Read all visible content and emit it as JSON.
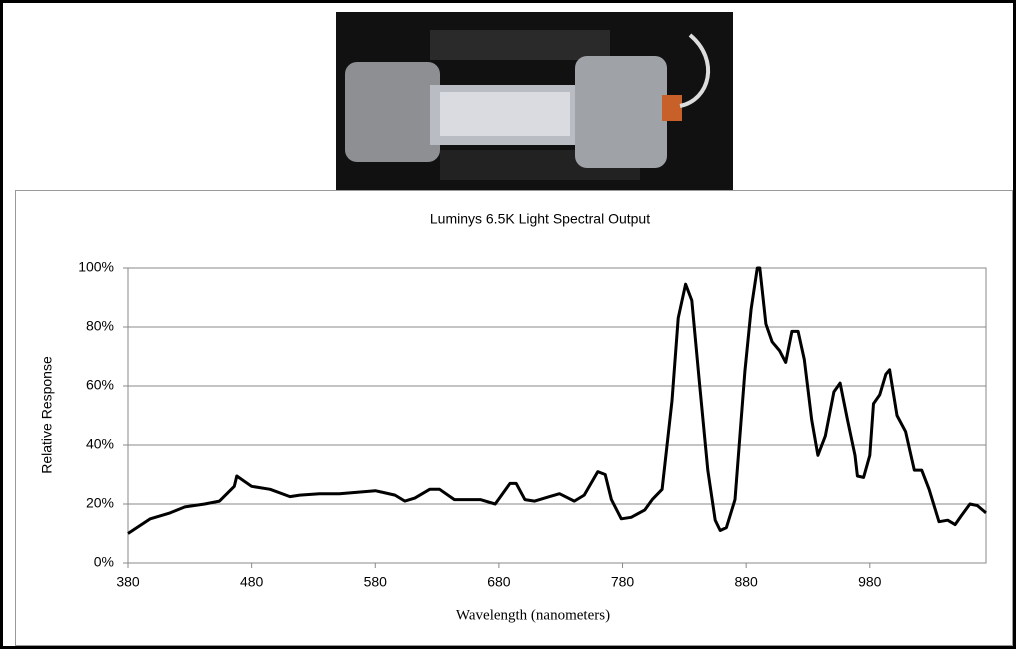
{
  "chart_data": {
    "type": "line",
    "title": "Luminys 6.5K Light Spectral Output",
    "x_label": "Wavelength (nanometers)",
    "y_label": "Relative Response",
    "x": [
      380,
      398,
      414,
      426,
      442,
      454,
      466,
      468,
      480,
      495,
      511,
      519,
      535,
      551,
      580,
      596,
      604,
      612,
      624,
      632,
      644,
      665,
      677,
      689,
      694,
      701,
      709,
      721,
      729,
      741,
      749,
      760,
      766,
      771,
      779,
      787,
      798,
      804,
      812,
      820,
      825,
      831,
      836,
      842,
      849,
      855,
      859,
      864,
      871,
      879,
      884,
      889,
      891,
      896,
      901,
      907,
      912,
      917,
      922,
      927,
      933,
      938,
      944,
      951,
      956,
      962,
      968,
      970,
      975,
      980,
      983,
      988,
      993,
      996,
      1002,
      1009,
      1016,
      1022,
      1028,
      1036,
      1043,
      1049,
      1054,
      1061,
      1067,
      1074
    ],
    "series": [
      {
        "name": "Relative Response",
        "color": "#000000",
        "values": [
          10,
          15,
          17,
          19,
          20,
          21,
          26,
          29.5,
          26,
          25,
          22.5,
          23,
          23.5,
          23.5,
          24.5,
          23,
          21,
          22,
          25,
          25,
          21.5,
          21.5,
          20,
          27,
          27,
          21.5,
          21,
          22.5,
          23.5,
          21,
          23,
          31,
          30,
          21.5,
          15,
          15.5,
          18,
          21.5,
          25,
          55,
          83,
          94.5,
          89,
          62,
          31.5,
          14.5,
          11,
          12,
          21.5,
          65,
          86,
          100,
          100,
          81,
          75,
          72,
          68,
          78.5,
          78.5,
          69,
          48.5,
          36.5,
          43,
          58,
          61,
          48.5,
          36.5,
          29.5,
          29,
          36.5,
          54,
          57,
          64,
          65.5,
          50,
          44.5,
          31.5,
          31.5,
          25,
          14,
          14.5,
          13,
          16,
          20,
          19.5,
          17
        ]
      }
    ],
    "xlim": [
      380,
      1074
    ],
    "ylim": [
      0,
      100
    ],
    "xticks": [
      380,
      480,
      580,
      680,
      780,
      880,
      980
    ],
    "yticks": [
      {
        "value": 0,
        "label": "0%"
      },
      {
        "value": 20,
        "label": "20%"
      },
      {
        "value": 40,
        "label": "40%"
      },
      {
        "value": 60,
        "label": "60%"
      },
      {
        "value": 80,
        "label": "80%"
      },
      {
        "value": 100,
        "label": "100%"
      }
    ],
    "grid": true
  }
}
